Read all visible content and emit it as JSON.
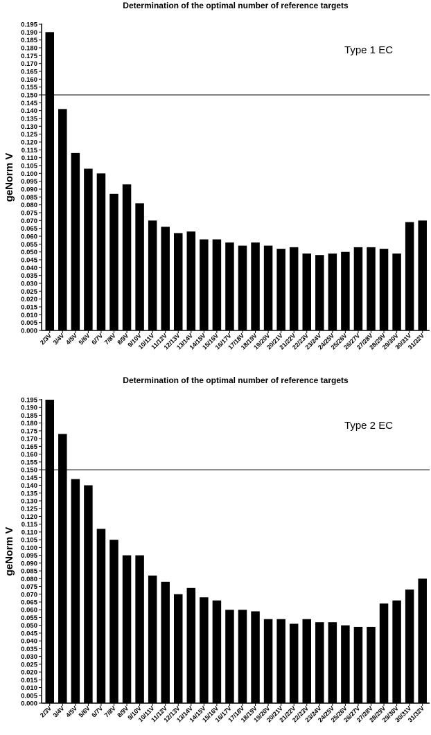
{
  "chart_data": [
    {
      "type": "bar",
      "title": "Determination of the optimal number of reference targets",
      "ylabel": "geNorm V",
      "xlabel": "",
      "annotation": "Type 1 EC",
      "ylim": [
        0,
        0.195
      ],
      "ytick_step": 0.005,
      "reference_line": 0.15,
      "grid": false,
      "categories": [
        "2/3V",
        "3/4V",
        "4/5V",
        "5/6V",
        "6/7V",
        "7/8V",
        "8/9V",
        "9/10V",
        "10/11V",
        "11/12V",
        "12/13V",
        "13/14V",
        "14/15V",
        "15/16V",
        "16/17V",
        "17/18V",
        "18/19V",
        "19/20V",
        "20/21V",
        "21/22V",
        "22/23V",
        "23/24V",
        "24/25V",
        "25/26V",
        "26/27V",
        "27/28V",
        "28/29V",
        "29/30V",
        "30/31V",
        "31/32V"
      ],
      "values": [
        0.19,
        0.141,
        0.113,
        0.103,
        0.1,
        0.087,
        0.093,
        0.081,
        0.07,
        0.066,
        0.062,
        0.063,
        0.058,
        0.058,
        0.056,
        0.054,
        0.056,
        0.054,
        0.052,
        0.053,
        0.049,
        0.048,
        0.049,
        0.05,
        0.053,
        0.053,
        0.052,
        0.049,
        0.069,
        0.07
      ]
    },
    {
      "type": "bar",
      "title": "Determination of the optimal number of reference targets",
      "ylabel": "geNorm V",
      "xlabel": "",
      "annotation": "Type 2 EC",
      "ylim": [
        0,
        0.195
      ],
      "ytick_step": 0.005,
      "reference_line": 0.15,
      "grid": false,
      "categories": [
        "2/3V",
        "3/4V",
        "4/5V",
        "5/6V",
        "6/7V",
        "7/8V",
        "8/9V",
        "9/10V",
        "10/11V",
        "11/12V",
        "12/13V",
        "13/14V",
        "14/15V",
        "15/16V",
        "16/17V",
        "17/18V",
        "18/19V",
        "19/20V",
        "20/21V",
        "21/22V",
        "22/23V",
        "23/24V",
        "24/25V",
        "25/26V",
        "26/27V",
        "27/28V",
        "28/29V",
        "29/30V",
        "30/31V",
        "31/32V"
      ],
      "values": [
        0.195,
        0.173,
        0.144,
        0.14,
        0.112,
        0.105,
        0.095,
        0.095,
        0.082,
        0.078,
        0.07,
        0.074,
        0.068,
        0.066,
        0.06,
        0.06,
        0.059,
        0.054,
        0.054,
        0.051,
        0.054,
        0.052,
        0.052,
        0.05,
        0.049,
        0.049,
        0.064,
        0.066,
        0.073,
        0.08
      ]
    }
  ]
}
